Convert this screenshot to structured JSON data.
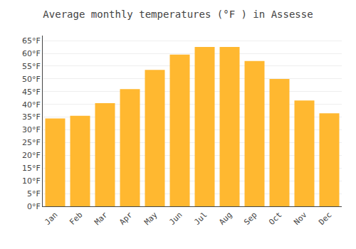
{
  "chart_data": {
    "type": "bar",
    "title": "Average monthly temperatures (°F ) in Assesse",
    "categories": [
      "Jan",
      "Feb",
      "Mar",
      "Apr",
      "May",
      "Jun",
      "Jul",
      "Aug",
      "Sep",
      "Oct",
      "Nov",
      "Dec"
    ],
    "values": [
      34.5,
      35.5,
      40.5,
      46.0,
      53.5,
      59.5,
      62.5,
      62.5,
      57.0,
      50.0,
      41.5,
      36.5
    ],
    "color": "#FFB830",
    "ylim": [
      0,
      67
    ],
    "yticks": [
      {
        "value": 0,
        "label": "0°F"
      },
      {
        "value": 5,
        "label": "5°F"
      },
      {
        "value": 10,
        "label": "10°F"
      },
      {
        "value": 15,
        "label": "15°F"
      },
      {
        "value": 20,
        "label": "20°F"
      },
      {
        "value": 25,
        "label": "25°F"
      },
      {
        "value": 30,
        "label": "30°F"
      },
      {
        "value": 35,
        "label": "35°F"
      },
      {
        "value": 40,
        "label": "40°F"
      },
      {
        "value": 45,
        "label": "45°F"
      },
      {
        "value": 50,
        "label": "50°F"
      },
      {
        "value": 55,
        "label": "55°F"
      },
      {
        "value": 60,
        "label": "60°F"
      },
      {
        "value": 65,
        "label": "65°F"
      }
    ],
    "grid": true
  }
}
